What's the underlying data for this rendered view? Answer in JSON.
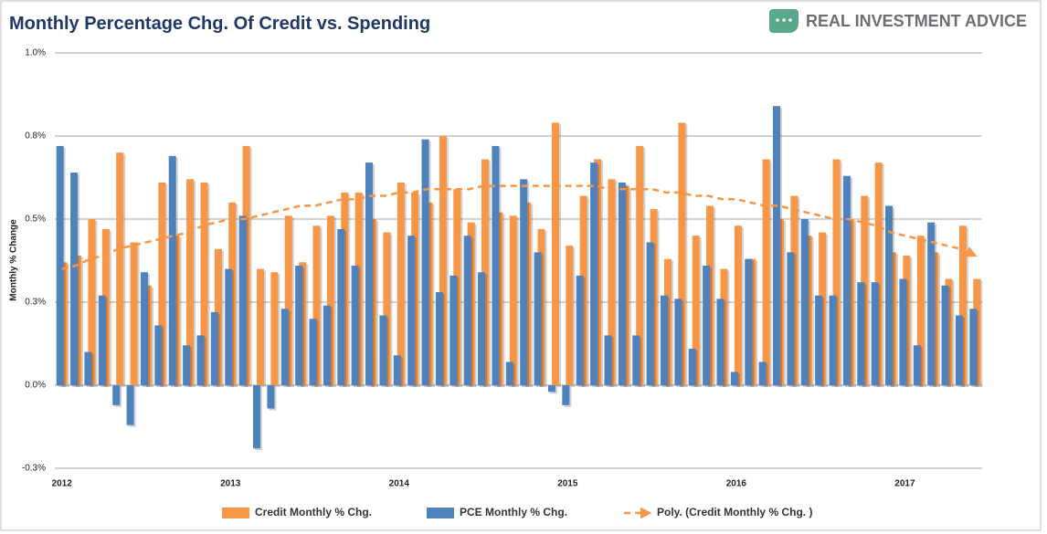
{
  "brand": "REAL INVESTMENT ADVICE",
  "chart_data": {
    "type": "bar",
    "title": "Monthly Percentage Chg. Of Credit vs. Spending",
    "y_label": "Monthly % Change",
    "categories": [
      "2012",
      null,
      null,
      null,
      null,
      null,
      null,
      null,
      null,
      null,
      null,
      null,
      "2013",
      null,
      null,
      null,
      null,
      null,
      null,
      null,
      null,
      null,
      null,
      null,
      "2014",
      null,
      null,
      null,
      null,
      null,
      null,
      null,
      null,
      null,
      null,
      null,
      "2015",
      null,
      null,
      null,
      null,
      null,
      null,
      null,
      null,
      null,
      null,
      null,
      "2016",
      null,
      null,
      null,
      null,
      null,
      null,
      null,
      null,
      null,
      null,
      null,
      "2017",
      null,
      null,
      null,
      null,
      null
    ],
    "series": [
      {
        "name": "Credit Monthly % Chg.",
        "type": "bar",
        "color": "#f79646",
        "values": [
          0.37,
          0.39,
          0.5,
          0.47,
          0.7,
          0.43,
          0.3,
          0.61,
          0.45,
          0.62,
          0.61,
          0.41,
          0.55,
          0.72,
          0.35,
          0.34,
          0.51,
          0.37,
          0.48,
          0.51,
          0.58,
          0.58,
          0.5,
          0.46,
          0.61,
          0.58,
          0.55,
          0.75,
          0.59,
          0.49,
          0.68,
          0.52,
          0.51,
          0.55,
          0.47,
          0.79,
          0.42,
          0.57,
          0.68,
          0.62,
          0.6,
          0.72,
          0.53,
          0.38,
          0.79,
          0.45,
          0.54,
          0.35,
          0.48,
          0.38,
          0.68,
          0.5,
          0.57,
          0.45,
          0.46,
          0.68,
          0.5,
          0.57,
          0.67,
          0.4,
          0.39,
          0.45,
          0.4,
          0.32,
          0.48,
          0.32
        ]
      },
      {
        "name": "PCE Monthly % Chg.",
        "type": "bar",
        "color": "#4f81bd",
        "values": [
          0.72,
          0.64,
          0.1,
          0.27,
          -0.06,
          -0.12,
          0.34,
          0.18,
          0.69,
          0.12,
          0.15,
          0.22,
          0.35,
          0.51,
          -0.19,
          -0.07,
          0.23,
          0.36,
          0.2,
          0.24,
          0.47,
          0.36,
          0.67,
          0.21,
          0.09,
          0.45,
          0.74,
          0.28,
          0.33,
          0.45,
          0.34,
          0.72,
          0.07,
          0.62,
          0.4,
          -0.02,
          -0.06,
          0.33,
          0.67,
          0.15,
          0.61,
          0.15,
          0.43,
          0.27,
          0.26,
          0.11,
          0.36,
          0.26,
          0.04,
          0.38,
          0.07,
          0.84,
          0.4,
          0.5,
          0.27,
          0.27,
          0.63,
          0.31,
          0.31,
          0.54,
          0.32,
          0.12,
          0.49,
          0.3,
          0.21,
          0.23
        ]
      },
      {
        "name": "Poly. (Credit Monthly % Chg. )",
        "type": "line",
        "color": "#f79646",
        "dashed": true,
        "values": [
          0.35,
          0.36,
          0.38,
          0.39,
          0.41,
          0.42,
          0.43,
          0.44,
          0.45,
          0.46,
          0.48,
          0.49,
          0.5,
          0.5,
          0.51,
          0.52,
          0.53,
          0.54,
          0.54,
          0.55,
          0.56,
          0.56,
          0.57,
          0.57,
          0.58,
          0.58,
          0.59,
          0.59,
          0.59,
          0.59,
          0.6,
          0.6,
          0.6,
          0.6,
          0.6,
          0.6,
          0.6,
          0.6,
          0.6,
          0.59,
          0.59,
          0.59,
          0.59,
          0.58,
          0.58,
          0.57,
          0.57,
          0.56,
          0.56,
          0.55,
          0.54,
          0.54,
          0.53,
          0.52,
          0.51,
          0.5,
          0.5,
          0.49,
          0.48,
          0.46,
          0.45,
          0.44,
          0.43,
          0.42,
          0.41,
          0.39
        ]
      }
    ],
    "ylim": [
      -0.25,
      1.0
    ],
    "yticks": [
      {
        "value": -0.25,
        "label": "-0.3%"
      },
      {
        "value": 0,
        "label": "0.0%"
      },
      {
        "value": 0.25,
        "label": "0.3%"
      },
      {
        "value": 0.5,
        "label": "0.5%"
      },
      {
        "value": 0.75,
        "label": "0.8%"
      },
      {
        "value": 1.0,
        "label": "1.0%"
      }
    ],
    "grid": true
  }
}
